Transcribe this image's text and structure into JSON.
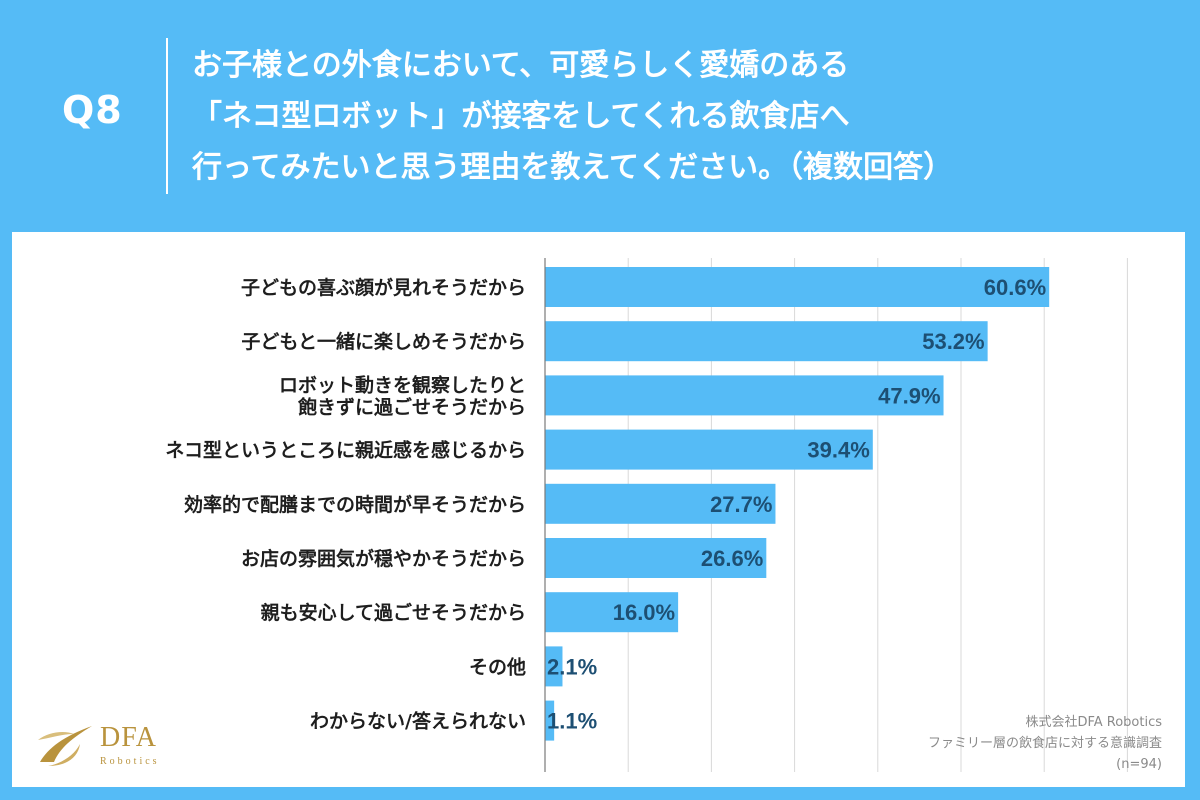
{
  "header": {
    "q_label": "Q8",
    "question_lines": [
      "お子様との外食において、可愛らしく愛嬌のある",
      "「ネコ型ロボット」が接客をしてくれる飲食店へ",
      "行ってみたいと思う理由を教えてください。（複数回答）"
    ]
  },
  "chart_data": {
    "type": "bar",
    "orientation": "horizontal",
    "categories": [
      [
        "子どもの喜ぶ顔が見れそうだから"
      ],
      [
        "子どもと一緒に楽しめそうだから"
      ],
      [
        "ロボット動きを観察したりと",
        "飽きずに過ごせそうだから"
      ],
      [
        "ネコ型というところに親近感を感じるから"
      ],
      [
        "効率的で配膳までの時間が早そうだから"
      ],
      [
        "お店の雰囲気が穏やかそうだから"
      ],
      [
        "親も安心して過ごせそうだから"
      ],
      [
        "その他"
      ],
      [
        "わからない/答えられない"
      ]
    ],
    "values": [
      60.6,
      53.2,
      47.9,
      39.4,
      27.7,
      26.6,
      16.0,
      2.1,
      1.1
    ],
    "value_labels": [
      "60.6%",
      "53.2%",
      "47.9%",
      "39.4%",
      "27.7%",
      "26.6%",
      "16.0%",
      "2.1%",
      "1.1%"
    ],
    "xlim": [
      0,
      70
    ],
    "grid": true,
    "bar_color": "#55bbf6",
    "value_color": "#1d4f73"
  },
  "footer": {
    "logo_name": "DFA",
    "logo_sub": "Robotics",
    "source_lines": [
      "株式会社DFA Robotics",
      "ファミリー層の飲食店に対する意識調査",
      "(n=94)"
    ]
  },
  "colors": {
    "background": "#55bbf6",
    "panel": "#ffffff",
    "logo_gold": "#b9933d"
  }
}
